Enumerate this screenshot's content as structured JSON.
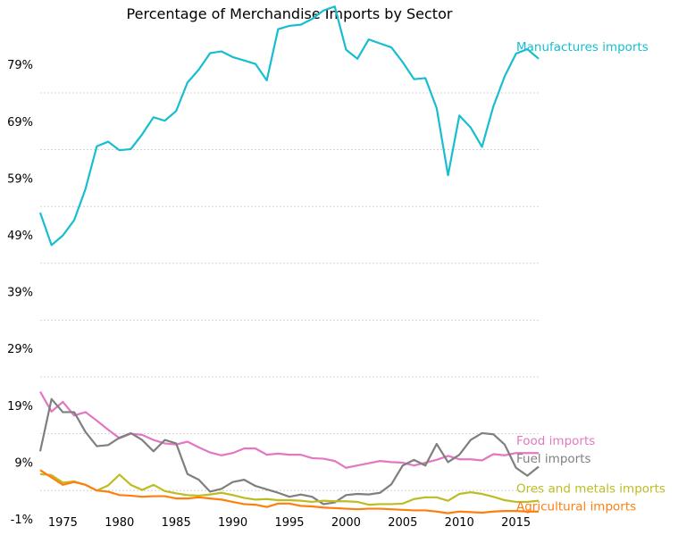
{
  "chart_data": {
    "type": "line",
    "title": "Percentage of Merchandise Imports  by Sector",
    "xlabel": "",
    "ylabel": "",
    "xlim": [
      1973,
      2017
    ],
    "ylim": [
      -1,
      85
    ],
    "x_ticks": [
      1975,
      1980,
      1985,
      1990,
      1995,
      2000,
      2005,
      2010,
      2015
    ],
    "y_ticks": [
      -1,
      9,
      19,
      29,
      39,
      49,
      59,
      69,
      79
    ],
    "y_tick_labels": [
      "-1%",
      "9%",
      "19%",
      "29%",
      "39%",
      "49%",
      "59%",
      "69%",
      "79%"
    ],
    "grid": "horizontal dotted",
    "legend": "labels at line ends (right)",
    "x": [
      1973,
      1974,
      1975,
      1976,
      1977,
      1978,
      1979,
      1980,
      1981,
      1982,
      1983,
      1984,
      1985,
      1986,
      1987,
      1988,
      1989,
      1990,
      1991,
      1992,
      1993,
      1994,
      1995,
      1996,
      1997,
      1998,
      1999,
      2000,
      2001,
      2002,
      2003,
      2004,
      2005,
      2006,
      2007,
      2008,
      2009,
      2010,
      2011,
      2012,
      2013,
      2014,
      2015,
      2016,
      2017
    ],
    "series": [
      {
        "name": "Manufactures imports",
        "color": "#17becf",
        "values": [
          52.9,
          47.2,
          48.9,
          51.6,
          57.1,
          64.6,
          65.4,
          63.9,
          64.1,
          66.7,
          69.7,
          69.1,
          70.8,
          75.8,
          78.1,
          81.0,
          81.3,
          80.3,
          79.7,
          79.1,
          76.2,
          85.2,
          85.8,
          86.0,
          87.0,
          88.5,
          89.2,
          81.6,
          80.0,
          83.4,
          82.7,
          82.0,
          79.4,
          76.4,
          76.6,
          71.3,
          59.5,
          70.0,
          67.9,
          64.5,
          71.6,
          76.9,
          80.9,
          81.7,
          80.0
        ]
      },
      {
        "name": "Food imports",
        "color": "#e377c2",
        "values": [
          21.4,
          17.9,
          19.6,
          17.2,
          17.8,
          16.3,
          14.7,
          13.2,
          14.0,
          13.8,
          12.9,
          12.3,
          12.1,
          12.6,
          11.6,
          10.7,
          10.2,
          10.6,
          11.4,
          11.4,
          10.3,
          10.5,
          10.3,
          10.3,
          9.7,
          9.6,
          9.2,
          8.0,
          8.4,
          8.8,
          9.2,
          9.0,
          8.9,
          8.4,
          8.9,
          9.4,
          10.1,
          9.5,
          9.5,
          9.3,
          10.4,
          10.2,
          10.6,
          10.6,
          10.6
        ]
      },
      {
        "name": "Fuel imports",
        "color": "#7f7f7f",
        "values": [
          10.9,
          20.1,
          17.8,
          17.8,
          14.3,
          11.8,
          12.0,
          13.3,
          14.1,
          12.9,
          10.9,
          12.9,
          12.3,
          6.9,
          5.9,
          3.8,
          4.3,
          5.5,
          5.9,
          4.8,
          4.2,
          3.6,
          2.9,
          3.3,
          2.9,
          1.6,
          1.9,
          3.2,
          3.4,
          3.3,
          3.6,
          5.1,
          8.4,
          9.4,
          8.4,
          12.2,
          9.0,
          10.3,
          12.9,
          14.1,
          13.9,
          12.1,
          8.0,
          6.6,
          8.2
        ]
      },
      {
        "name": "Ores and metals imports",
        "color": "#bcbd22",
        "values": [
          6.9,
          6.7,
          5.4,
          5.6,
          5.0,
          4.0,
          4.9,
          6.8,
          5.0,
          4.1,
          5.0,
          3.9,
          3.5,
          3.2,
          3.1,
          3.3,
          3.6,
          3.2,
          2.7,
          2.4,
          2.5,
          2.3,
          2.3,
          2.2,
          2.0,
          2.2,
          2.1,
          2.1,
          2.0,
          1.5,
          1.6,
          1.6,
          1.7,
          2.5,
          2.8,
          2.8,
          2.2,
          3.4,
          3.7,
          3.4,
          2.9,
          2.3,
          2.0,
          2.0,
          2.2
        ]
      },
      {
        "name": "Agricultural imports",
        "color": "#ff7f0e",
        "values": [
          7.6,
          6.3,
          5.0,
          5.5,
          5.0,
          4.0,
          3.8,
          3.2,
          3.1,
          2.9,
          3.0,
          3.0,
          2.6,
          2.6,
          2.8,
          2.6,
          2.4,
          2.0,
          1.6,
          1.5,
          1.1,
          1.7,
          1.7,
          1.3,
          1.2,
          1.0,
          0.9,
          0.8,
          0.7,
          0.8,
          0.8,
          0.7,
          0.6,
          0.5,
          0.5,
          0.3,
          0.0,
          0.3,
          0.2,
          0.1,
          0.3,
          0.4,
          0.4,
          0.3,
          0.3
        ]
      }
    ]
  }
}
